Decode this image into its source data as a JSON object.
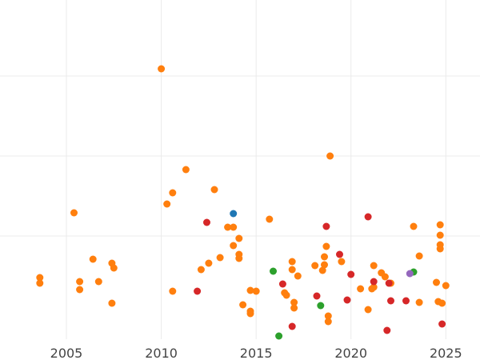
{
  "chart_data": {
    "type": "scatter",
    "title": "",
    "xlabel": "",
    "ylabel": "",
    "xlim": [
      2001.5,
      2026.8
    ],
    "ylim": [
      0,
      420
    ],
    "x_ticks": [
      2005,
      2010,
      2015,
      2020,
      2025
    ],
    "y_gridlines": [
      125,
      225,
      325,
      425
    ],
    "grid": true,
    "legend": "none",
    "colors": {
      "orange": "#ff7f0e",
      "red": "#d62728",
      "blue": "#1f77b4",
      "green": "#2ca02c",
      "purple": "#9467bd"
    },
    "series": [
      {
        "color": "orange",
        "points": [
          [
            2003.6,
            73
          ],
          [
            2003.6,
            66
          ],
          [
            2005.4,
            154
          ],
          [
            2005.7,
            68
          ],
          [
            2005.7,
            58
          ],
          [
            2006.4,
            96
          ],
          [
            2006.7,
            68
          ],
          [
            2007.4,
            91
          ],
          [
            2007.5,
            85
          ],
          [
            2007.4,
            41
          ],
          [
            2010.0,
            334
          ],
          [
            2010.3,
            165
          ],
          [
            2010.6,
            179
          ],
          [
            2010.6,
            56
          ],
          [
            2011.3,
            208
          ],
          [
            2012.1,
            83
          ],
          [
            2012.5,
            91
          ],
          [
            2012.8,
            183
          ],
          [
            2013.1,
            98
          ],
          [
            2013.5,
            136
          ],
          [
            2013.8,
            136
          ],
          [
            2013.8,
            113
          ],
          [
            2014.1,
            122
          ],
          [
            2014.1,
            102
          ],
          [
            2014.1,
            97
          ],
          [
            2014.3,
            39
          ],
          [
            2014.7,
            57
          ],
          [
            2014.7,
            31
          ],
          [
            2014.7,
            28
          ],
          [
            2015.0,
            56
          ],
          [
            2015.7,
            146
          ],
          [
            2016.5,
            54
          ],
          [
            2016.6,
            51
          ],
          [
            2016.9,
            83
          ],
          [
            2016.9,
            93
          ],
          [
            2017.0,
            42
          ],
          [
            2017.0,
            35
          ],
          [
            2017.2,
            75
          ],
          [
            2018.1,
            88
          ],
          [
            2018.5,
            82
          ],
          [
            2018.6,
            89
          ],
          [
            2018.6,
            99
          ],
          [
            2018.7,
            112
          ],
          [
            2018.9,
            225
          ],
          [
            2018.8,
            25
          ],
          [
            2018.8,
            18
          ],
          [
            2019.5,
            93
          ],
          [
            2020.5,
            59
          ],
          [
            2020.9,
            33
          ],
          [
            2021.1,
            59
          ],
          [
            2021.2,
            61
          ],
          [
            2021.2,
            88
          ],
          [
            2021.6,
            79
          ],
          [
            2021.8,
            74
          ],
          [
            2022.1,
            66
          ],
          [
            2023.3,
            137
          ],
          [
            2023.6,
            100
          ],
          [
            2023.6,
            42
          ],
          [
            2024.5,
            67
          ],
          [
            2024.6,
            43
          ],
          [
            2024.7,
            139
          ],
          [
            2024.7,
            126
          ],
          [
            2024.7,
            114
          ],
          [
            2024.7,
            109
          ],
          [
            2024.8,
            41
          ],
          [
            2025.0,
            63
          ]
        ]
      },
      {
        "color": "red",
        "points": [
          [
            2011.9,
            56
          ],
          [
            2012.4,
            142
          ],
          [
            2016.4,
            65
          ],
          [
            2016.9,
            12
          ],
          [
            2018.2,
            50
          ],
          [
            2018.7,
            137
          ],
          [
            2019.4,
            102
          ],
          [
            2019.8,
            45
          ],
          [
            2020.0,
            77
          ],
          [
            2020.9,
            149
          ],
          [
            2021.2,
            68
          ],
          [
            2021.9,
            7
          ],
          [
            2022.0,
            66
          ],
          [
            2022.1,
            44
          ],
          [
            2022.9,
            44
          ],
          [
            2024.8,
            15
          ]
        ]
      },
      {
        "color": "blue",
        "points": [
          [
            2013.8,
            153
          ]
        ]
      },
      {
        "color": "green",
        "points": [
          [
            2015.9,
            81
          ],
          [
            2016.2,
            0
          ],
          [
            2018.4,
            38
          ],
          [
            2023.3,
            80
          ]
        ]
      },
      {
        "color": "purple",
        "points": [
          [
            2023.1,
            78
          ]
        ]
      }
    ]
  }
}
